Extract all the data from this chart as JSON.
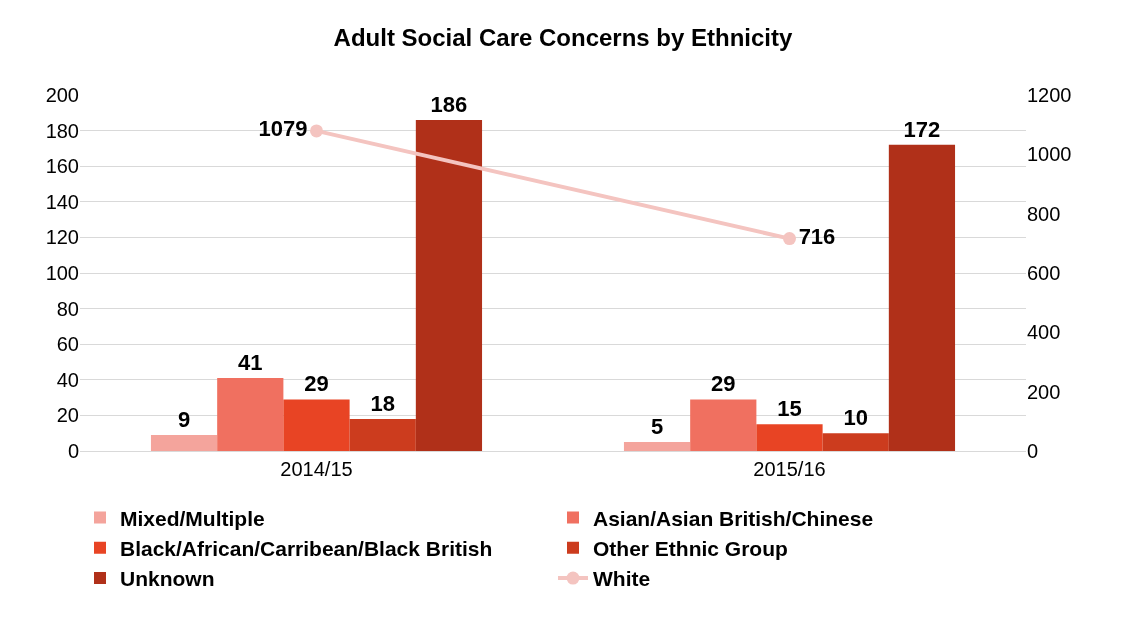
{
  "chart_data": {
    "type": "bar",
    "title": "Adult Social Care Concerns by Ethnicity",
    "categories": [
      "2014/15",
      "2015/16"
    ],
    "series": [
      {
        "name": "Mixed/Multiple",
        "color": "#f4a49c",
        "values": [
          9,
          5
        ]
      },
      {
        "name": "Asian/Asian British/Chinese",
        "color": "#f07060",
        "values": [
          41,
          29
        ]
      },
      {
        "name": "Black/African/Carribean/Black British",
        "color": "#e84424",
        "values": [
          29,
          15
        ]
      },
      {
        "name": "Other Ethnic Group",
        "color": "#cc3c1e",
        "values": [
          18,
          10
        ]
      },
      {
        "name": "Unknown",
        "color": "#b03019",
        "values": [
          186,
          172
        ]
      },
      {
        "name": "White",
        "color": "#f4c4c0",
        "type": "line",
        "axis": "y2",
        "marker": "circle",
        "values": [
          1079,
          716
        ]
      }
    ],
    "ylim": [
      0,
      200
    ],
    "yticks": [
      0,
      20,
      40,
      60,
      80,
      100,
      120,
      140,
      160,
      180,
      200
    ],
    "y2lim": [
      0,
      1200
    ],
    "y2ticks": [
      0,
      200,
      400,
      600,
      800,
      1000,
      1200
    ],
    "grid": "y",
    "legend": "bottom",
    "data_labels": true
  }
}
